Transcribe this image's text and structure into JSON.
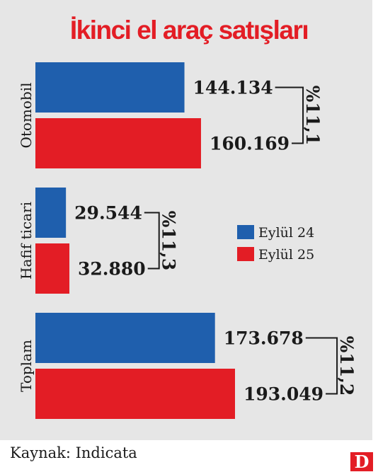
{
  "title": "İkinci el araç satışları",
  "source": "Kaynak: Indicata",
  "logo": "D",
  "chart_data": {
    "type": "bar",
    "orientation": "horizontal",
    "title": "İkinci el araç satışları",
    "categories": [
      "Otomobil",
      "Hafif ticari",
      "Toplam"
    ],
    "series": [
      {
        "name": "Eylül 24",
        "color": "#1f5fad",
        "values": [
          144134,
          29544,
          173678
        ],
        "labels": [
          "144.134",
          "29.544",
          "173.678"
        ]
      },
      {
        "name": "Eylül 25",
        "color": "#e31d25",
        "values": [
          160169,
          32880,
          193049
        ],
        "labels": [
          "160.169",
          "32.880",
          "193.049"
        ]
      }
    ],
    "changes": [
      "%11,1",
      "%11,3",
      "%11,2"
    ],
    "legend": {
      "position": "right",
      "entries": [
        "Eylül 24",
        "Eylül 25"
      ]
    },
    "grid": false
  }
}
